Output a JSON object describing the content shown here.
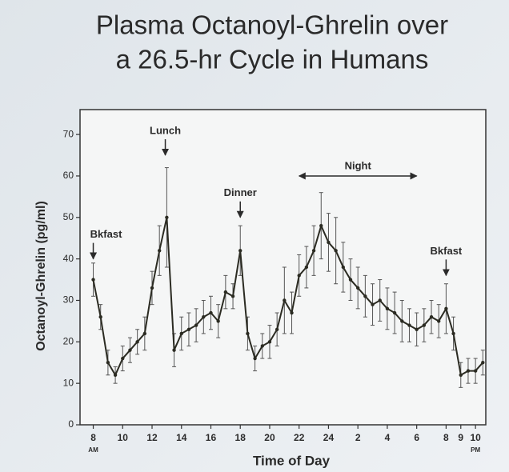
{
  "chart_data": {
    "type": "line",
    "title": [
      "Plasma Octanoyl-Ghrelin over",
      "a 26.5-hr Cycle in Humans"
    ],
    "x_label": "Time of Day",
    "y_label": "Octanoyl-Ghrelin (pg/ml)",
    "x": [
      8,
      8.5,
      9,
      9.5,
      10,
      10.5,
      11,
      11.5,
      12,
      12.5,
      13,
      13.5,
      14,
      14.5,
      15,
      15.5,
      16,
      16.5,
      17,
      17.5,
      18,
      18.5,
      19,
      19.5,
      20,
      20.5,
      21,
      21.5,
      22,
      22.5,
      23,
      23.5,
      24,
      24.5,
      25,
      25.5,
      26,
      26.5,
      27,
      27.5,
      28,
      28.5,
      29,
      29.5,
      30,
      30.5,
      31,
      31.5,
      32,
      32.5,
      33,
      33.5,
      34,
      34.5
    ],
    "values": [
      35,
      26,
      15,
      12,
      16,
      18,
      20,
      22,
      33,
      42,
      50,
      18,
      22,
      23,
      24,
      26,
      27,
      25,
      32,
      31,
      42,
      22,
      16,
      19,
      20,
      23,
      30,
      27,
      36,
      38,
      42,
      48,
      44,
      42,
      38,
      35,
      33,
      31,
      29,
      30,
      28,
      27,
      25,
      24,
      23,
      24,
      26,
      25,
      28,
      22,
      12,
      13,
      13,
      15
    ],
    "errors": [
      4,
      3,
      3,
      2,
      3,
      3,
      3,
      4,
      4,
      6,
      12,
      4,
      4,
      4,
      4,
      4,
      4,
      4,
      4,
      3,
      6,
      4,
      3,
      3,
      4,
      4,
      8,
      5,
      5,
      5,
      6,
      8,
      7,
      8,
      6,
      5,
      5,
      5,
      5,
      5,
      5,
      5,
      5,
      4,
      4,
      4,
      4,
      4,
      6,
      4,
      3,
      3,
      3,
      3
    ],
    "color": "#2b2b22",
    "xlim": [
      7.1,
      34.7
    ],
    "ylim": [
      0,
      76
    ],
    "yticks": [
      0,
      10,
      20,
      30,
      40,
      50,
      60,
      70
    ],
    "xticks": [
      8,
      10,
      12,
      14,
      16,
      18,
      20,
      22,
      24,
      {
        "value": 26,
        "label": "2"
      },
      {
        "value": 28,
        "label": "4"
      },
      {
        "value": 30,
        "label": "6"
      },
      {
        "value": 32,
        "label": "8"
      },
      {
        "value": 33,
        "label": "9"
      },
      {
        "value": 34,
        "label": "10"
      }
    ],
    "x_tick_notes": [
      {
        "x": 8,
        "text": "AM"
      },
      {
        "x": 34,
        "text": "PM"
      }
    ],
    "annotations": [
      {
        "text": "Bkfast",
        "x": 8,
        "y": 40
      },
      {
        "text": "Lunch",
        "x": 12.9,
        "y": 65
      },
      {
        "text": "Dinner",
        "x": 18,
        "y": 50
      },
      {
        "text": "Night",
        "x": [
          22,
          30
        ],
        "y": 60
      },
      {
        "text": "Bkfast",
        "x": 32,
        "y": 36
      }
    ]
  }
}
